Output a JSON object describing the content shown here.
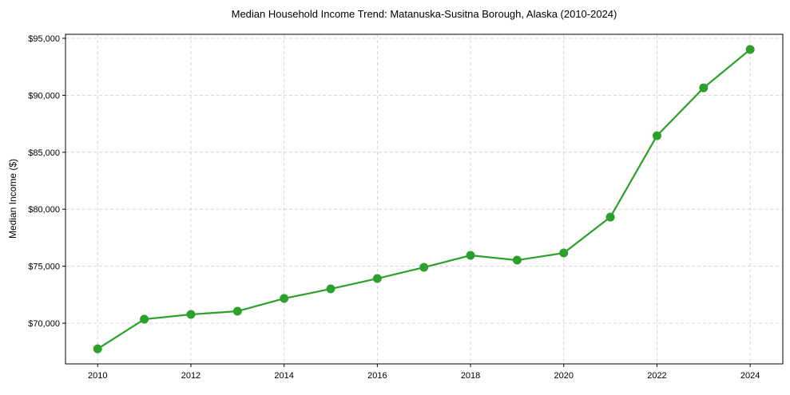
{
  "chart_data": {
    "type": "line",
    "title": "Median Household Income Trend: Matanuska-Susitna Borough, Alaska (2010-2024)",
    "xlabel": "",
    "ylabel": "Median Income ($)",
    "x": [
      2010,
      2011,
      2012,
      2013,
      2014,
      2015,
      2016,
      2017,
      2018,
      2019,
      2020,
      2021,
      2022,
      2023,
      2024
    ],
    "series": [
      {
        "name": "Median Income",
        "color": "#2ca02c",
        "values": [
          67750,
          70350,
          70770,
          71050,
          72170,
          73010,
          73920,
          74900,
          75950,
          75530,
          76160,
          79310,
          86450,
          90650,
          94020
        ]
      }
    ],
    "xlim": [
      2009.31,
      2024.7
    ],
    "ylim": [
      66430,
      95350
    ],
    "xticks": [
      2010,
      2012,
      2014,
      2016,
      2018,
      2020,
      2022,
      2024
    ],
    "xtick_labels": [
      "2010",
      "2012",
      "2014",
      "2016",
      "2018",
      "2020",
      "2022",
      "2024"
    ],
    "yticks": [
      70000,
      75000,
      80000,
      85000,
      90000,
      95000
    ],
    "ytick_labels": [
      "$70,000",
      "$75,000",
      "$80,000",
      "$85,000",
      "$90,000",
      "$95,000"
    ],
    "grid": true,
    "legend": "none"
  }
}
